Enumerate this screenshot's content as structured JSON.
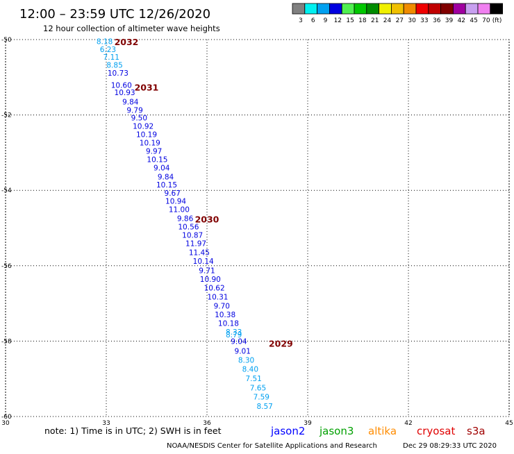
{
  "header": {
    "title": "12:00 – 23:59 UTC 12/26/2020",
    "subtitle": "12 hour collection of altimeter wave heights"
  },
  "legend": {
    "unit": "(ft)",
    "bins": [
      {
        "label": "3",
        "color": "#808080"
      },
      {
        "label": "6",
        "color": "#00f0f0"
      },
      {
        "label": "9",
        "color": "#00a0f0"
      },
      {
        "label": "12",
        "color": "#0000e0"
      },
      {
        "label": "15",
        "color": "#50f050"
      },
      {
        "label": "18",
        "color": "#00c800"
      },
      {
        "label": "21",
        "color": "#008c00"
      },
      {
        "label": "24",
        "color": "#f0f000"
      },
      {
        "label": "27",
        "color": "#f0c000"
      },
      {
        "label": "30",
        "color": "#f08c00"
      },
      {
        "label": "33",
        "color": "#f00000"
      },
      {
        "label": "36",
        "color": "#c00000"
      },
      {
        "label": "39",
        "color": "#800000"
      },
      {
        "label": "42",
        "color": "#a000a0"
      },
      {
        "label": "45",
        "color": "#c8a0f0"
      },
      {
        "label": "70",
        "color": "#f080f0"
      },
      {
        "label": "",
        "color": "#000000"
      }
    ]
  },
  "footer": {
    "note": "note: 1) Time is in UTC; 2) SWH is in feet",
    "satellites": [
      {
        "name": "jason2",
        "color": "#0000ff"
      },
      {
        "name": "jason3",
        "color": "#00a000"
      },
      {
        "name": "altika",
        "color": "#ff8c00"
      },
      {
        "name": "cryosat",
        "color": "#e00000"
      },
      {
        "name": "s3a",
        "color": "#a00000"
      }
    ],
    "credit": "NOAA/NESDIS Center for Satellite Applications and Research",
    "timestamp": "Dec 29 08:29:33 UTC 2020"
  },
  "chart_data": {
    "type": "scatter",
    "x_ticks": [
      30,
      33,
      36,
      39,
      42,
      45
    ],
    "y_ticks": [
      -50,
      -52,
      -54,
      -56,
      -58,
      -60
    ],
    "xlim": [
      30,
      45
    ],
    "ylim": [
      -60,
      -50
    ],
    "grid": true,
    "grid_style": "dotted",
    "time_labels": [
      {
        "text": "2032",
        "lon": 33.6,
        "lat": -50.15
      },
      {
        "text": "2031",
        "lon": 34.2,
        "lat": -51.35
      },
      {
        "text": "2030",
        "lon": 36.0,
        "lat": -54.85
      },
      {
        "text": "2029",
        "lon": 38.2,
        "lat": -58.15
      }
    ],
    "points": [
      {
        "lon": 32.95,
        "lat": -50.12,
        "value": "8.18"
      },
      {
        "lon": 33.05,
        "lat": -50.33,
        "value": "6.23"
      },
      {
        "lon": 33.15,
        "lat": -50.53,
        "value": "7.11"
      },
      {
        "lon": 33.25,
        "lat": -50.75,
        "value": "8.85"
      },
      {
        "lon": 33.35,
        "lat": -50.96,
        "value": "10.73"
      },
      {
        "lon": 33.45,
        "lat": -51.28,
        "value": "10.60"
      },
      {
        "lon": 33.55,
        "lat": -51.47,
        "value": "10.93"
      },
      {
        "lon": 33.72,
        "lat": -51.72,
        "value": "9.84"
      },
      {
        "lon": 33.85,
        "lat": -51.94,
        "value": "9.79"
      },
      {
        "lon": 33.98,
        "lat": -52.15,
        "value": "9.50"
      },
      {
        "lon": 34.1,
        "lat": -52.37,
        "value": "10.92"
      },
      {
        "lon": 34.2,
        "lat": -52.59,
        "value": "10.19"
      },
      {
        "lon": 34.3,
        "lat": -52.81,
        "value": "10.19"
      },
      {
        "lon": 34.42,
        "lat": -53.03,
        "value": "9.97"
      },
      {
        "lon": 34.52,
        "lat": -53.25,
        "value": "10.15"
      },
      {
        "lon": 34.65,
        "lat": -53.47,
        "value": "9.04"
      },
      {
        "lon": 34.77,
        "lat": -53.71,
        "value": "9.84"
      },
      {
        "lon": 34.8,
        "lat": -53.92,
        "value": "10.15"
      },
      {
        "lon": 34.97,
        "lat": -54.14,
        "value": "9.67"
      },
      {
        "lon": 35.07,
        "lat": -54.36,
        "value": "10.94"
      },
      {
        "lon": 35.17,
        "lat": -54.58,
        "value": "11.00"
      },
      {
        "lon": 35.35,
        "lat": -54.82,
        "value": "9.86"
      },
      {
        "lon": 35.45,
        "lat": -55.04,
        "value": "10.56"
      },
      {
        "lon": 35.57,
        "lat": -55.26,
        "value": "10.87"
      },
      {
        "lon": 35.67,
        "lat": -55.48,
        "value": "11.97"
      },
      {
        "lon": 35.77,
        "lat": -55.72,
        "value": "11.45"
      },
      {
        "lon": 35.89,
        "lat": -55.95,
        "value": "10.14"
      },
      {
        "lon": 36.0,
        "lat": -56.2,
        "value": "9.71"
      },
      {
        "lon": 36.1,
        "lat": -56.43,
        "value": "10.90"
      },
      {
        "lon": 36.22,
        "lat": -56.66,
        "value": "10.62"
      },
      {
        "lon": 36.32,
        "lat": -56.9,
        "value": "10.31"
      },
      {
        "lon": 36.44,
        "lat": -57.14,
        "value": "9.70"
      },
      {
        "lon": 36.54,
        "lat": -57.37,
        "value": "10.38"
      },
      {
        "lon": 36.64,
        "lat": -57.6,
        "value": "10.18"
      },
      {
        "lon": 36.8,
        "lat": -57.83,
        "value": "8.33"
      },
      {
        "lon": 36.8,
        "lat": -57.9,
        "value": "8.79"
      },
      {
        "lon": 36.95,
        "lat": -58.08,
        "value": "9.04"
      },
      {
        "lon": 37.06,
        "lat": -58.33,
        "value": "9.01"
      },
      {
        "lon": 37.17,
        "lat": -58.57,
        "value": "8.30"
      },
      {
        "lon": 37.29,
        "lat": -58.81,
        "value": "8.40"
      },
      {
        "lon": 37.39,
        "lat": -59.06,
        "value": "7.51"
      },
      {
        "lon": 37.52,
        "lat": -59.31,
        "value": "7.65"
      },
      {
        "lon": 37.62,
        "lat": -59.55,
        "value": "7.59"
      },
      {
        "lon": 37.72,
        "lat": -59.8,
        "value": "8.57"
      }
    ]
  }
}
